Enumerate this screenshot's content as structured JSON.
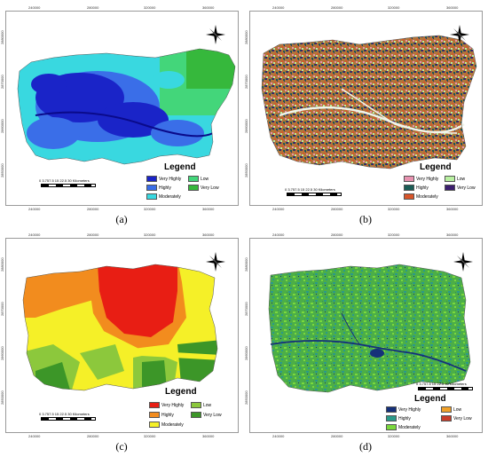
{
  "panels": [
    {
      "caption": "(a)",
      "x_ticks": [
        "240000",
        "280000",
        "320000",
        "360000"
      ],
      "y_ticks": [
        "2880000",
        "2870000",
        "2860000",
        "2850000"
      ],
      "legend_title": "Legend",
      "legend_items": [
        {
          "label": "Very Highly",
          "color": "#1a24c8"
        },
        {
          "label": "Low",
          "color": "#43d67a"
        },
        {
          "label": "Highly",
          "color": "#3a6ee8"
        },
        {
          "label": "Very Low",
          "color": "#36b83c"
        },
        {
          "label": "Moderately",
          "color": "#39d8e0"
        }
      ],
      "scale_label": "0 3.757.5  15  22.5  30 Kilometers"
    },
    {
      "caption": "(b)",
      "x_ticks": [
        "240000",
        "280000",
        "320000",
        "360000"
      ],
      "y_ticks": [
        "2880000",
        "2870000",
        "2860000",
        "2850000"
      ],
      "legend_title": "Legend",
      "legend_items": [
        {
          "label": "Very Highly",
          "color": "#e892b0"
        },
        {
          "label": "Low",
          "color": "#b8f0a0"
        },
        {
          "label": "Highly",
          "color": "#1a5c55"
        },
        {
          "label": "Very Low",
          "color": "#3c1e6e"
        },
        {
          "label": "Moderately",
          "color": "#d8552a"
        }
      ],
      "scale_label": "0 3.757.5  15  22.5  30 Kilometers"
    },
    {
      "caption": "(c)",
      "x_ticks": [
        "240000",
        "280000",
        "320000",
        "360000"
      ],
      "y_ticks": [
        "2880000",
        "2870000",
        "2860000",
        "2850000"
      ],
      "legend_title": "Legend",
      "legend_items": [
        {
          "label": "Very Highly",
          "color": "#e81e14"
        },
        {
          "label": "Low",
          "color": "#8cc83c"
        },
        {
          "label": "Highly",
          "color": "#f28c1e"
        },
        {
          "label": "Very Low",
          "color": "#3c9628"
        },
        {
          "label": "Moderately",
          "color": "#f5f028"
        }
      ],
      "scale_label": "0 3.757.5  15  22.5  30 Kilometers"
    },
    {
      "caption": "(d)",
      "x_ticks": [
        "240000",
        "280000",
        "320000",
        "360000"
      ],
      "y_ticks": [
        "2880000",
        "2870000",
        "2860000",
        "2850000"
      ],
      "legend_title": "Legend",
      "legend_items": [
        {
          "label": "Very Highly",
          "color": "#15307a"
        },
        {
          "label": "Low",
          "color": "#f0a028"
        },
        {
          "label": "Highly",
          "color": "#2a9a8a"
        },
        {
          "label": "Very Low",
          "color": "#c83c28"
        },
        {
          "label": "Moderately",
          "color": "#7ad83c"
        }
      ],
      "scale_label": "0 3.757.5  15  22.5  30 Kilometers"
    }
  ]
}
